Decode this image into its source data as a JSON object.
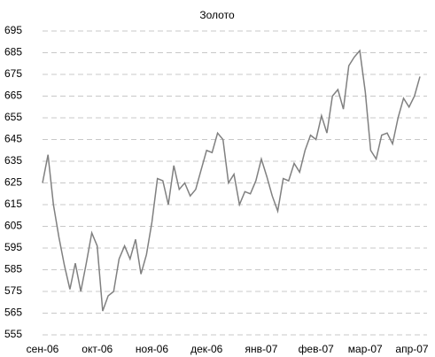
{
  "chart_data": {
    "type": "line",
    "title": "Золото",
    "categories": [
      "сен-06",
      null,
      null,
      null,
      null,
      null,
      null,
      null,
      null,
      null,
      "окт-06",
      null,
      null,
      null,
      null,
      null,
      null,
      null,
      null,
      null,
      "ноя-06",
      null,
      null,
      null,
      null,
      null,
      null,
      null,
      null,
      null,
      "дек-06",
      null,
      null,
      null,
      null,
      null,
      null,
      null,
      null,
      null,
      "янв-07",
      null,
      null,
      null,
      null,
      null,
      null,
      null,
      null,
      null,
      "фев-07",
      null,
      null,
      null,
      null,
      null,
      null,
      null,
      null,
      "мар-07",
      null,
      null,
      null,
      null,
      null,
      null,
      null,
      null,
      null,
      "апр-07"
    ],
    "series": [
      {
        "name": "Золото",
        "color": "#808080",
        "values": [
          625,
          638,
          615,
          600,
          587,
          576,
          588,
          575,
          588,
          602,
          596,
          566,
          573,
          575,
          590,
          596,
          590,
          599,
          583,
          592,
          607,
          627,
          626,
          615,
          633,
          622,
          625,
          619,
          622,
          631,
          640,
          639,
          648,
          645,
          625,
          629,
          615,
          621,
          620,
          626,
          636,
          628,
          619,
          612,
          627,
          626,
          634,
          630,
          640,
          647,
          645,
          656,
          648,
          665,
          668,
          659,
          679,
          683,
          686,
          667,
          640,
          636,
          647,
          648,
          643,
          655,
          664,
          660,
          665,
          674
        ]
      }
    ],
    "ylim": [
      555,
      695
    ],
    "yticks": [
      555,
      565,
      575,
      585,
      595,
      605,
      615,
      625,
      635,
      645,
      655,
      665,
      675,
      685,
      695
    ],
    "grid": true
  }
}
